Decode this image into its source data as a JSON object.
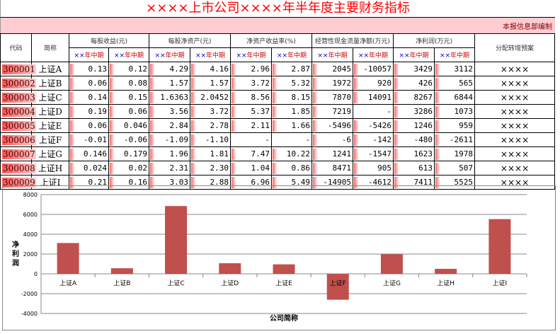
{
  "title": "××××上市公司××××年半年度主要财务指标",
  "compiler": "本报信息部编制",
  "headers": {
    "code": "代码",
    "name": "简称",
    "groups": [
      "每股收益(元)",
      "每股净资产(元)",
      "净资产收益率(%)",
      "经营性现金流量净额(万元)",
      "净利润(万元)"
    ],
    "distribution": "分配转增预案",
    "period_prefix": "××",
    "period_suffix": "年中期"
  },
  "rows": [
    {
      "code": "300001",
      "name": "上证A",
      "values": [
        "0.13",
        "0.12",
        "4.29",
        "4.16",
        "2.96",
        "2.87",
        "2045",
        "-10057",
        "3429",
        "3112"
      ],
      "dist": "××××"
    },
    {
      "code": "300002",
      "name": "上证B",
      "values": [
        "0.06",
        "0.08",
        "1.57",
        "1.57",
        "3.72",
        "5.32",
        "1972",
        "920",
        "426",
        "565"
      ],
      "dist": "××××"
    },
    {
      "code": "300003",
      "name": "上证C",
      "values": [
        "0.14",
        "0.15",
        "1.6363",
        "2.0452",
        "8.56",
        "8.15",
        "7870",
        "14091",
        "8267",
        "6844"
      ],
      "dist": "××××"
    },
    {
      "code": "300004",
      "name": "上证D",
      "values": [
        "0.19",
        "0.06",
        "3.56",
        "3.72",
        "5.37",
        "1.85",
        "7219",
        "-",
        "3286",
        "1073"
      ],
      "dist": "××××"
    },
    {
      "code": "300005",
      "name": "上证E",
      "values": [
        "0.06",
        "0.046",
        "2.84",
        "2.78",
        "2.11",
        "1.66",
        "-5496",
        "-5426",
        "1246",
        "959"
      ],
      "dist": "××××"
    },
    {
      "code": "300006",
      "name": "上证F",
      "values": [
        "-0.01",
        "-0.06",
        "-1.09",
        "-1.10",
        "-",
        "-",
        "-6",
        "-142",
        "-480",
        "-2611"
      ],
      "dist": "××××"
    },
    {
      "code": "300007",
      "name": "上证G",
      "values": [
        "0.146",
        "0.179",
        "1.96",
        "1.81",
        "7.47",
        "10.22",
        "1241",
        "-1547",
        "1623",
        "1978"
      ],
      "dist": "××××"
    },
    {
      "code": "300008",
      "name": "上证H",
      "values": [
        "0.024",
        "0.02",
        "2.31",
        "2.30",
        "1.04",
        "0.86",
        "8471",
        "905",
        "613",
        "507"
      ],
      "dist": "××××"
    },
    {
      "code": "300009",
      "name": "上证I",
      "values": [
        "0.21",
        "0.16",
        "3.03",
        "2.88",
        "6.96",
        "5.49",
        "-14905",
        "-4612",
        "7411",
        "5525"
      ],
      "dist": "××××"
    }
  ],
  "chart_data": {
    "type": "bar",
    "categories": [
      "上证A",
      "上证B",
      "上证C",
      "上证D",
      "上证E",
      "上证F",
      "上证G",
      "上证H",
      "上证I"
    ],
    "values": [
      3112,
      565,
      6844,
      1073,
      959,
      -2611,
      1978,
      507,
      5525
    ],
    "xlabel": "公司简称",
    "ylabel": "净利润",
    "ylim": [
      -4000,
      8000
    ],
    "yticks": [
      -4000,
      -2000,
      0,
      2000,
      4000,
      6000,
      8000
    ],
    "grid": true,
    "bar_color": "#c0504d"
  }
}
